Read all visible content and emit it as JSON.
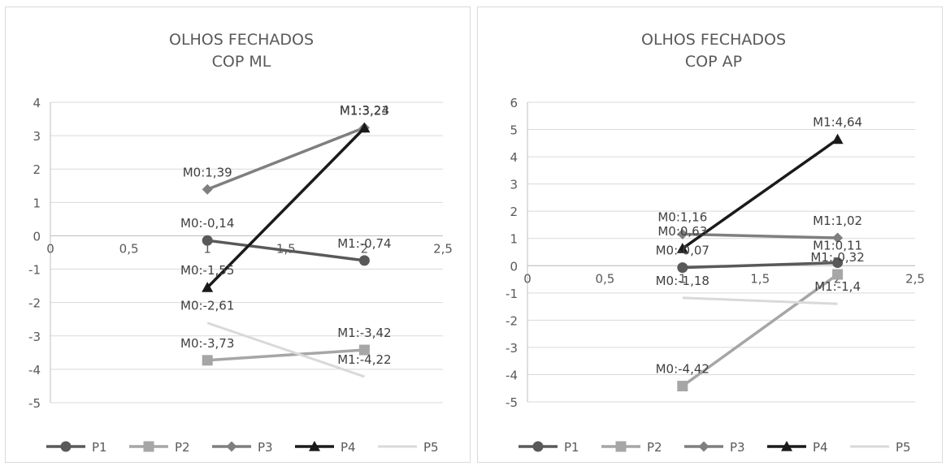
{
  "chart_data": [
    {
      "type": "scatter",
      "title": [
        "OLHOS FECHADOS",
        "COP ML"
      ],
      "xlim": [
        0,
        2.5
      ],
      "ylim": [
        -5,
        4
      ],
      "x_ticks": [
        "0",
        "0,5",
        "1",
        "1,5",
        "2",
        "2,5"
      ],
      "y_ticks": [
        "-5",
        "-4",
        "-3",
        "-2",
        "-1",
        "0",
        "1",
        "2",
        "3",
        "4"
      ],
      "grid": true,
      "legend": "bottom",
      "series": [
        {
          "name": "P1",
          "color": "#595959",
          "marker": "circle",
          "x": [
            1,
            2
          ],
          "y": [
            -0.14,
            -0.74
          ],
          "labels": [
            "M0:-0,14",
            "M1:-0,74"
          ]
        },
        {
          "name": "P2",
          "color": "#a6a6a6",
          "marker": "square",
          "x": [
            1,
            2
          ],
          "y": [
            -3.73,
            -3.42
          ],
          "labels": [
            "M0:-3,73",
            "M1:-3,42"
          ]
        },
        {
          "name": "P3",
          "color": "#7f7f7f",
          "marker": "diamond",
          "x": [
            1,
            2
          ],
          "y": [
            1.39,
            3.24
          ],
          "labels": [
            "M0:1,39",
            "M1:3,24"
          ]
        },
        {
          "name": "P4",
          "color": "#1a1a1a",
          "marker": "triangle",
          "x": [
            1,
            2
          ],
          "y": [
            -1.55,
            3.23
          ],
          "labels": [
            "M0:-1,55",
            "M1:3,23"
          ]
        },
        {
          "name": "P5",
          "color": "#d9d9d9",
          "marker": "none",
          "x": [
            1,
            2
          ],
          "y": [
            -2.61,
            -4.22
          ],
          "labels": [
            "M0:-2,61",
            "M1:-4,22"
          ]
        }
      ]
    },
    {
      "type": "scatter",
      "title": [
        "OLHOS FECHADOS",
        "COP AP"
      ],
      "xlim": [
        0,
        2.5
      ],
      "ylim": [
        -5,
        6
      ],
      "x_ticks": [
        "0",
        "0,5",
        "1",
        "1,5",
        "2",
        "2,5"
      ],
      "y_ticks": [
        "-5",
        "-4",
        "-3",
        "-2",
        "-1",
        "0",
        "1",
        "2",
        "3",
        "4",
        "5",
        "6"
      ],
      "grid": true,
      "legend": "bottom",
      "series": [
        {
          "name": "P1",
          "color": "#595959",
          "marker": "circle",
          "x": [
            1,
            2
          ],
          "y": [
            -0.07,
            0.11
          ],
          "labels": [
            "M0:-0,07",
            "M1:0,11"
          ]
        },
        {
          "name": "P2",
          "color": "#a6a6a6",
          "marker": "square",
          "x": [
            1,
            2
          ],
          "y": [
            -4.42,
            -0.32
          ],
          "labels": [
            "M0:-4,42",
            "M1:-0,32"
          ]
        },
        {
          "name": "P3",
          "color": "#7f7f7f",
          "marker": "diamond",
          "x": [
            1,
            2
          ],
          "y": [
            1.16,
            1.02
          ],
          "labels": [
            "M0:1,16",
            "M1:1,02"
          ]
        },
        {
          "name": "P4",
          "color": "#1a1a1a",
          "marker": "triangle",
          "x": [
            1,
            2
          ],
          "y": [
            0.63,
            4.64
          ],
          "labels": [
            "M0:0,63",
            "M1:4,64"
          ]
        },
        {
          "name": "P5",
          "color": "#d9d9d9",
          "marker": "none",
          "x": [
            1,
            2
          ],
          "y": [
            -1.18,
            -1.4
          ],
          "labels": [
            "M0:-1,18",
            "M1:-1,4"
          ]
        }
      ]
    }
  ]
}
